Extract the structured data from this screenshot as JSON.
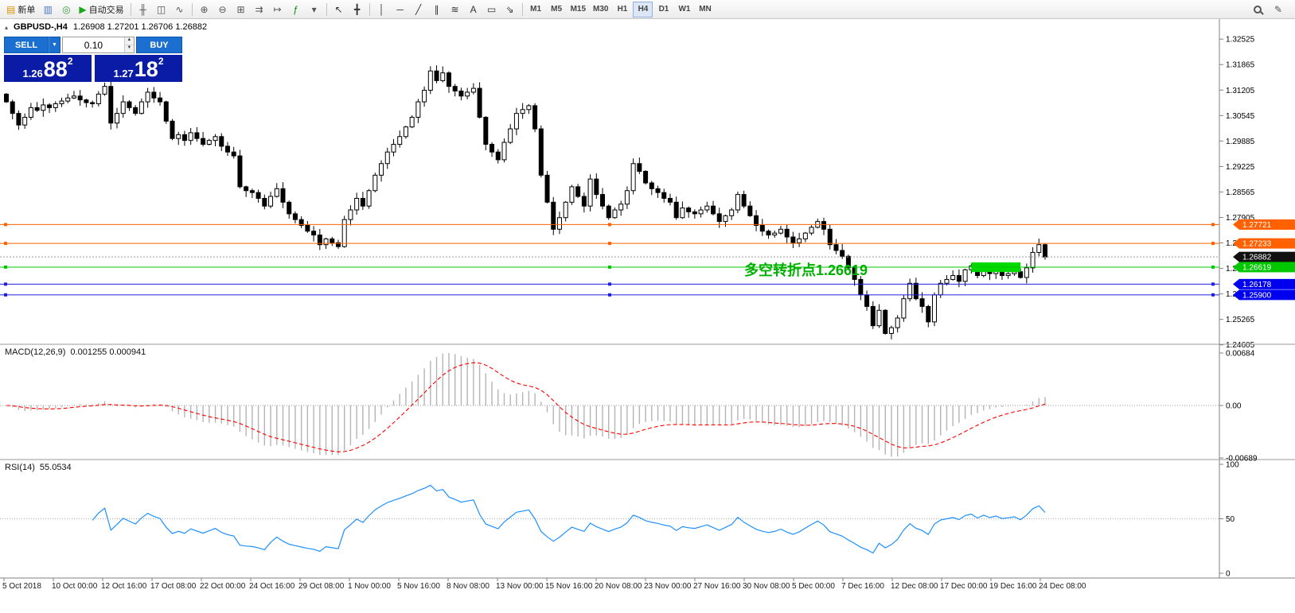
{
  "window": {
    "title": "GBPUSD-,H4"
  },
  "toolbar": {
    "items": [
      {
        "t": "btn",
        "glyph": "▤",
        "color": "#d89400",
        "label": "新单",
        "name": "new-order-button"
      },
      {
        "t": "btn",
        "glyph": "▥",
        "color": "#4a7ac8",
        "name": "chart-windows-button"
      },
      {
        "t": "btn",
        "glyph": "◎",
        "color": "#3a9a3a",
        "name": "market-watch-button"
      },
      {
        "t": "btn",
        "glyph": "▶",
        "color": "#18a818",
        "label": "自动交易",
        "name": "autotrading-button"
      },
      {
        "t": "sep"
      },
      {
        "t": "btn",
        "glyph": "╫",
        "color": "#555555",
        "name": "bar-chart-button"
      },
      {
        "t": "btn",
        "glyph": "◫",
        "color": "#555555",
        "name": "candlestick-chart-button"
      },
      {
        "t": "btn",
        "glyph": "∿",
        "color": "#555555",
        "name": "line-chart-button"
      },
      {
        "t": "sep"
      },
      {
        "t": "btn",
        "glyph": "⊕",
        "color": "#555555",
        "name": "zoom-in-button"
      },
      {
        "t": "btn",
        "glyph": "⊖",
        "color": "#555555",
        "name": "zoom-out-button"
      },
      {
        "t": "btn",
        "glyph": "⊞",
        "color": "#555555",
        "name": "new-chart-button"
      },
      {
        "t": "btn",
        "glyph": "⇉",
        "color": "#555555",
        "name": "auto-scroll-button"
      },
      {
        "t": "btn",
        "glyph": "↦",
        "color": "#555555",
        "name": "chart-shift-button"
      },
      {
        "t": "btn",
        "glyph": "ƒ",
        "color": "#0a8a0a",
        "name": "indicators-button"
      },
      {
        "t": "btn",
        "glyph": "▾",
        "color": "#555555",
        "name": "templates-dropdown"
      },
      {
        "t": "sep"
      },
      {
        "t": "btn",
        "glyph": "↖",
        "color": "#333333",
        "name": "cursor-button"
      },
      {
        "t": "btn",
        "glyph": "╋",
        "color": "#333333",
        "name": "crosshair-button"
      },
      {
        "t": "sep"
      },
      {
        "t": "btn",
        "glyph": "│",
        "color": "#333333",
        "name": "vertical-line-button"
      },
      {
        "t": "btn",
        "glyph": "─",
        "color": "#333333",
        "name": "horizontal-line-button"
      },
      {
        "t": "btn",
        "glyph": "╱",
        "color": "#333333",
        "name": "trendline-button"
      },
      {
        "t": "btn",
        "glyph": "∥",
        "color": "#333333",
        "name": "channel-button"
      },
      {
        "t": "btn",
        "glyph": "≋",
        "color": "#333333",
        "name": "fibonacci-button"
      },
      {
        "t": "btn",
        "glyph": "A",
        "color": "#333333",
        "name": "text-button"
      },
      {
        "t": "btn",
        "glyph": "▭",
        "color": "#333333",
        "name": "text-label-button"
      },
      {
        "t": "btn",
        "glyph": "⇘",
        "color": "#333333",
        "name": "arrows-dropdown"
      },
      {
        "t": "sep"
      },
      {
        "t": "tf",
        "label": "M1",
        "name": "timeframe-m1"
      },
      {
        "t": "tf",
        "label": "M5",
        "name": "timeframe-m5"
      },
      {
        "t": "tf",
        "label": "M15",
        "name": "timeframe-m15"
      },
      {
        "t": "tf",
        "label": "M30",
        "name": "timeframe-m30"
      },
      {
        "t": "tf",
        "label": "H1",
        "name": "timeframe-h1"
      },
      {
        "t": "tf",
        "label": "H4",
        "name": "timeframe-h4",
        "active": true
      },
      {
        "t": "tf",
        "label": "D1",
        "name": "timeframe-d1"
      },
      {
        "t": "tf",
        "label": "W1",
        "name": "timeframe-w1"
      },
      {
        "t": "tf",
        "label": "MN",
        "name": "timeframe-mn"
      }
    ],
    "right_items": [
      {
        "t": "mag",
        "name": "search-symbol-button"
      },
      {
        "t": "btn",
        "glyph": "✎",
        "color": "#555555",
        "name": "quick-draw-button"
      }
    ]
  },
  "chart_header": {
    "collapse_icon": "▴",
    "title": "GBPUSD-,H4",
    "ohlc": "1.26908 1.27201 1.26706 1.26882"
  },
  "trade_panel": {
    "sell_label": "SELL",
    "buy_label": "BUY",
    "lot_value": "0.10",
    "dropdown_icon": "▼",
    "spin_up": "▲",
    "spin_down": "▼",
    "sell_price": {
      "prefix": "1.26",
      "big": "88",
      "sup": "2"
    },
    "buy_price": {
      "prefix": "1.27",
      "big": "18",
      "sup": "2"
    }
  },
  "chart_data": [
    {
      "type": "candlestick",
      "symbol": "GBPUSD-",
      "timeframe": "H4",
      "ohlc_current": {
        "open": 1.26908,
        "high": 1.27201,
        "low": 1.26706,
        "close": 1.26882
      },
      "y_max": 1.3292,
      "y_min": 1.2462,
      "y_ticks": [
        "1.32525",
        "1.31865",
        "1.31205",
        "1.30545",
        "1.29885",
        "1.29225",
        "1.28565",
        "1.27905",
        "1.27245",
        "1.26585",
        "1.25925",
        "1.25265",
        "1.24605"
      ],
      "x_labels": [
        "5 Oct 2018",
        "10 Oct 00:00",
        "12 Oct 16:00",
        "17 Oct 08:00",
        "22 Oct 00:00",
        "24 Oct 16:00",
        "29 Oct 08:00",
        "1 Nov 00:00",
        "5 Nov 16:00",
        "8 Nov 08:00",
        "13 Nov 00:00",
        "15 Nov 16:00",
        "20 Nov 08:00",
        "23 Nov 00:00",
        "27 Nov 16:00",
        "30 Nov 08:00",
        "5 Dec 00:00",
        "7 Dec 16:00",
        "12 Dec 08:00",
        "17 Dec 00:00",
        "19 Dec 16:00",
        "24 Dec 08:00"
      ],
      "first_open": 1.311,
      "closes": [
        1.309,
        1.306,
        1.303,
        1.305,
        1.3075,
        1.3068,
        1.3082,
        1.3075,
        1.3085,
        1.3092,
        1.31,
        1.3105,
        1.3095,
        1.3088,
        1.3085,
        1.311,
        1.313,
        1.3035,
        1.306,
        1.309,
        1.3075,
        1.306,
        1.309,
        1.3115,
        1.31,
        1.309,
        1.304,
        1.2995,
        1.3005,
        1.299,
        1.301,
        1.2995,
        1.298,
        1.299,
        1.3,
        1.2975,
        1.296,
        1.295,
        1.287,
        1.286,
        1.2855,
        1.284,
        1.282,
        1.2845,
        1.2865,
        1.283,
        1.28,
        1.2785,
        1.277,
        1.2755,
        1.2745,
        1.272,
        1.2735,
        1.2725,
        1.2715,
        1.2785,
        1.281,
        1.284,
        1.282,
        1.286,
        1.29,
        1.293,
        1.296,
        1.298,
        1.3,
        1.3025,
        1.305,
        1.309,
        1.312,
        1.317,
        1.3145,
        1.3165,
        1.313,
        1.3118,
        1.3105,
        1.3115,
        1.3125,
        1.305,
        1.298,
        1.296,
        1.294,
        1.2985,
        1.302,
        1.306,
        1.307,
        1.308,
        1.302,
        1.29,
        1.283,
        1.276,
        1.279,
        1.283,
        1.287,
        1.2845,
        1.282,
        1.289,
        1.285,
        1.282,
        1.279,
        1.281,
        1.2825,
        1.286,
        1.293,
        1.291,
        1.288,
        1.2865,
        1.2855,
        1.284,
        1.283,
        1.279,
        1.2815,
        1.2805,
        1.28,
        1.281,
        1.282,
        1.28,
        1.278,
        1.2795,
        1.281,
        1.285,
        1.282,
        1.2795,
        1.277,
        1.2755,
        1.2745,
        1.275,
        1.276,
        1.274,
        1.2725,
        1.2735,
        1.275,
        1.2765,
        1.278,
        1.276,
        1.272,
        1.2705,
        1.269,
        1.266,
        1.263,
        1.259,
        1.256,
        1.251,
        1.255,
        1.249,
        1.2505,
        1.253,
        1.258,
        1.262,
        1.258,
        1.256,
        1.252,
        1.259,
        1.262,
        1.263,
        1.264,
        1.2625,
        1.2655,
        1.2665,
        1.264,
        1.266,
        1.2645,
        1.2655,
        1.264,
        1.2645,
        1.265,
        1.2635,
        1.266,
        1.27,
        1.272,
        1.26882
      ],
      "levels": [
        {
          "price": 1.27721,
          "color": "#ff6000",
          "tag": "1.27721"
        },
        {
          "price": 1.27233,
          "color": "#ff6000",
          "tag": "1.27233"
        },
        {
          "price": 1.26882,
          "color": "#999999",
          "tag": "1.26882",
          "tag_color": "#111111",
          "dotted": true
        },
        {
          "price": 1.26619,
          "color": "#00c800",
          "tag": "1.26619"
        },
        {
          "price": 1.26178,
          "color": "#2020dd",
          "tag": "1.26178",
          "tag_color": "#0000ee"
        },
        {
          "price": 1.259,
          "color": "#2020dd",
          "tag": "1.25900",
          "tag_color": "#0000ee"
        }
      ],
      "annotation": {
        "text": "多空转折点1.26619",
        "color": "#00b000",
        "x": 935,
        "price": 1.2641
      },
      "highlight": {
        "from_index": 157,
        "to_index": 165,
        "price_top": 1.2674,
        "price_bottom": 1.2649,
        "color": "#00d900"
      }
    },
    {
      "type": "macd",
      "label": "MACD(12,26,9)",
      "values_label": "0.001255 0.000941",
      "params": {
        "fast": 12,
        "slow": 26,
        "signal": 9
      },
      "y_ticks": [
        {
          "v": 1,
          "label": "0.00684"
        },
        {
          "v": 0,
          "label": "0.00"
        },
        {
          "v": -1,
          "label": "-0.00689"
        }
      ],
      "histogram_color": "#b4b4b4",
      "signal_color": "#ff0000"
    },
    {
      "type": "rsi",
      "label": "RSI(14)",
      "values_label": "55.0534",
      "period": 14,
      "y_ticks": [
        {
          "v": 100,
          "label": "100"
        },
        {
          "v": 50,
          "label": "50"
        },
        {
          "v": 0,
          "label": "0"
        }
      ],
      "line_color": "#1e90ff",
      "level": 50
    }
  ]
}
